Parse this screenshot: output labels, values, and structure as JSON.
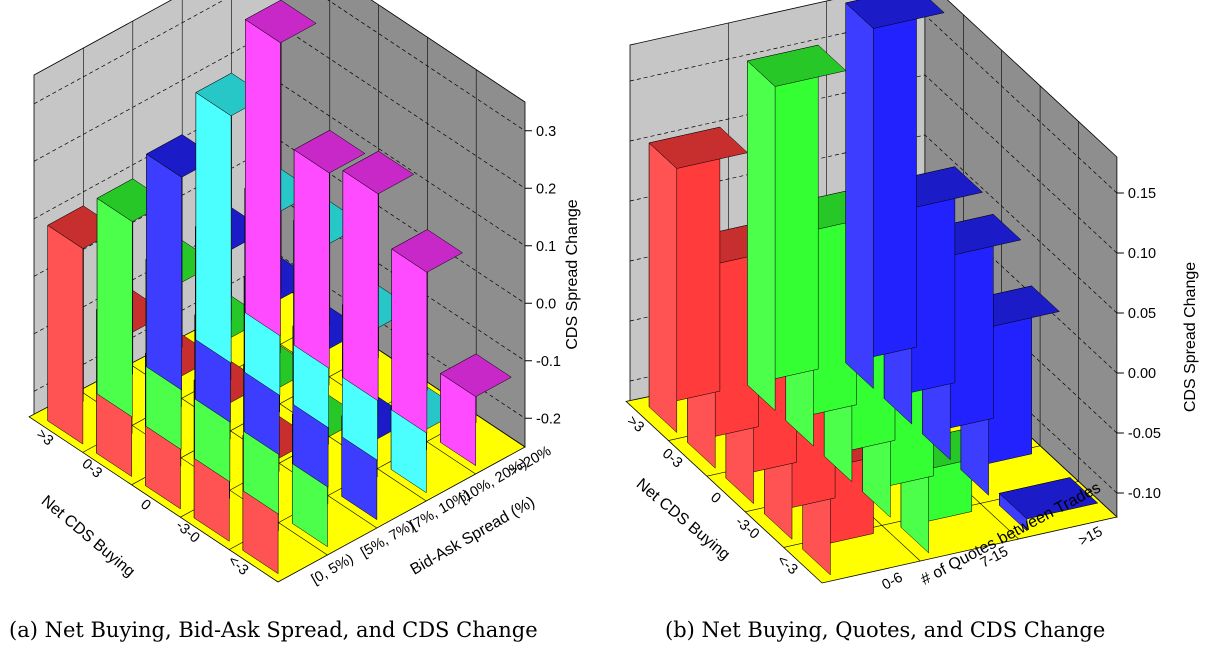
{
  "captions": {
    "a": "(a) Net Buying, Bid-Ask Spread, and CDS Change",
    "b": "(b) Net Buying, Quotes, and CDS Change"
  },
  "chart_data": [
    {
      "type": "bar3d",
      "x_label": "Net CDS Buying",
      "x_categories": [
        ">3",
        "0-3",
        "0",
        "-3-0",
        "<-3"
      ],
      "depth_label": "Bid-Ask Spread (%)",
      "depth_categories": [
        "[0, 5%)",
        "[5%, 7%)",
        "[7%, 10%)",
        "[10%, 20%)",
        ">=20%"
      ],
      "z_label": "CDS Spread Change",
      "z_ticks": [
        "0.3",
        "0.2",
        "0.1",
        "0.0",
        "-0.1",
        "-0.2"
      ],
      "zlim": [
        -0.25,
        0.35
      ],
      "series": [
        {
          "name": "[0, 5%)",
          "color": "#ff3b3b",
          "values": [
            0.09,
            0.0,
            -0.02,
            -0.01,
            -0.05
          ]
        },
        {
          "name": "[5%, 7%)",
          "color": "#33ff33",
          "values": [
            0.09,
            0.04,
            0.0,
            -0.03,
            -0.06
          ]
        },
        {
          "name": "[7%, 10%)",
          "color": "#2222ff",
          "values": [
            0.12,
            0.05,
            0.02,
            -0.01,
            -0.11
          ]
        },
        {
          "name": "[10%, 20%)",
          "color": "#33ffff",
          "values": [
            0.18,
            0.07,
            0.07,
            -0.02,
            -0.14
          ]
        },
        {
          "name": ">=20%",
          "color": "#ff33ff",
          "values": [
            0.26,
            0.09,
            0.11,
            0.03,
            -0.13
          ]
        }
      ]
    },
    {
      "type": "bar3d",
      "x_label": "Net CDS Buying",
      "x_categories": [
        ">3",
        "0-3",
        "0",
        "-3-0",
        "<-3"
      ],
      "depth_label": "# of Quotes between Trades",
      "depth_categories": [
        "0-6",
        "7-15",
        ">15"
      ],
      "z_label": "CDS Spread Change",
      "z_ticks": [
        "0.15",
        "0.10",
        "0.05",
        "0.00",
        "-0.05",
        "-0.10"
      ],
      "zlim": [
        -0.12,
        0.18
      ],
      "series": [
        {
          "name": "0-6",
          "color": "#ff3b3b",
          "values": [
            0.1,
            0.05,
            0.02,
            0.0,
            -0.03
          ]
        },
        {
          "name": "7-15",
          "color": "#33ff33",
          "values": [
            0.15,
            0.06,
            0.02,
            0.02,
            -0.05
          ]
        },
        {
          "name": ">15",
          "color": "#2222ff",
          "values": [
            0.18,
            0.06,
            0.05,
            0.02,
            -0.11
          ]
        }
      ]
    }
  ]
}
